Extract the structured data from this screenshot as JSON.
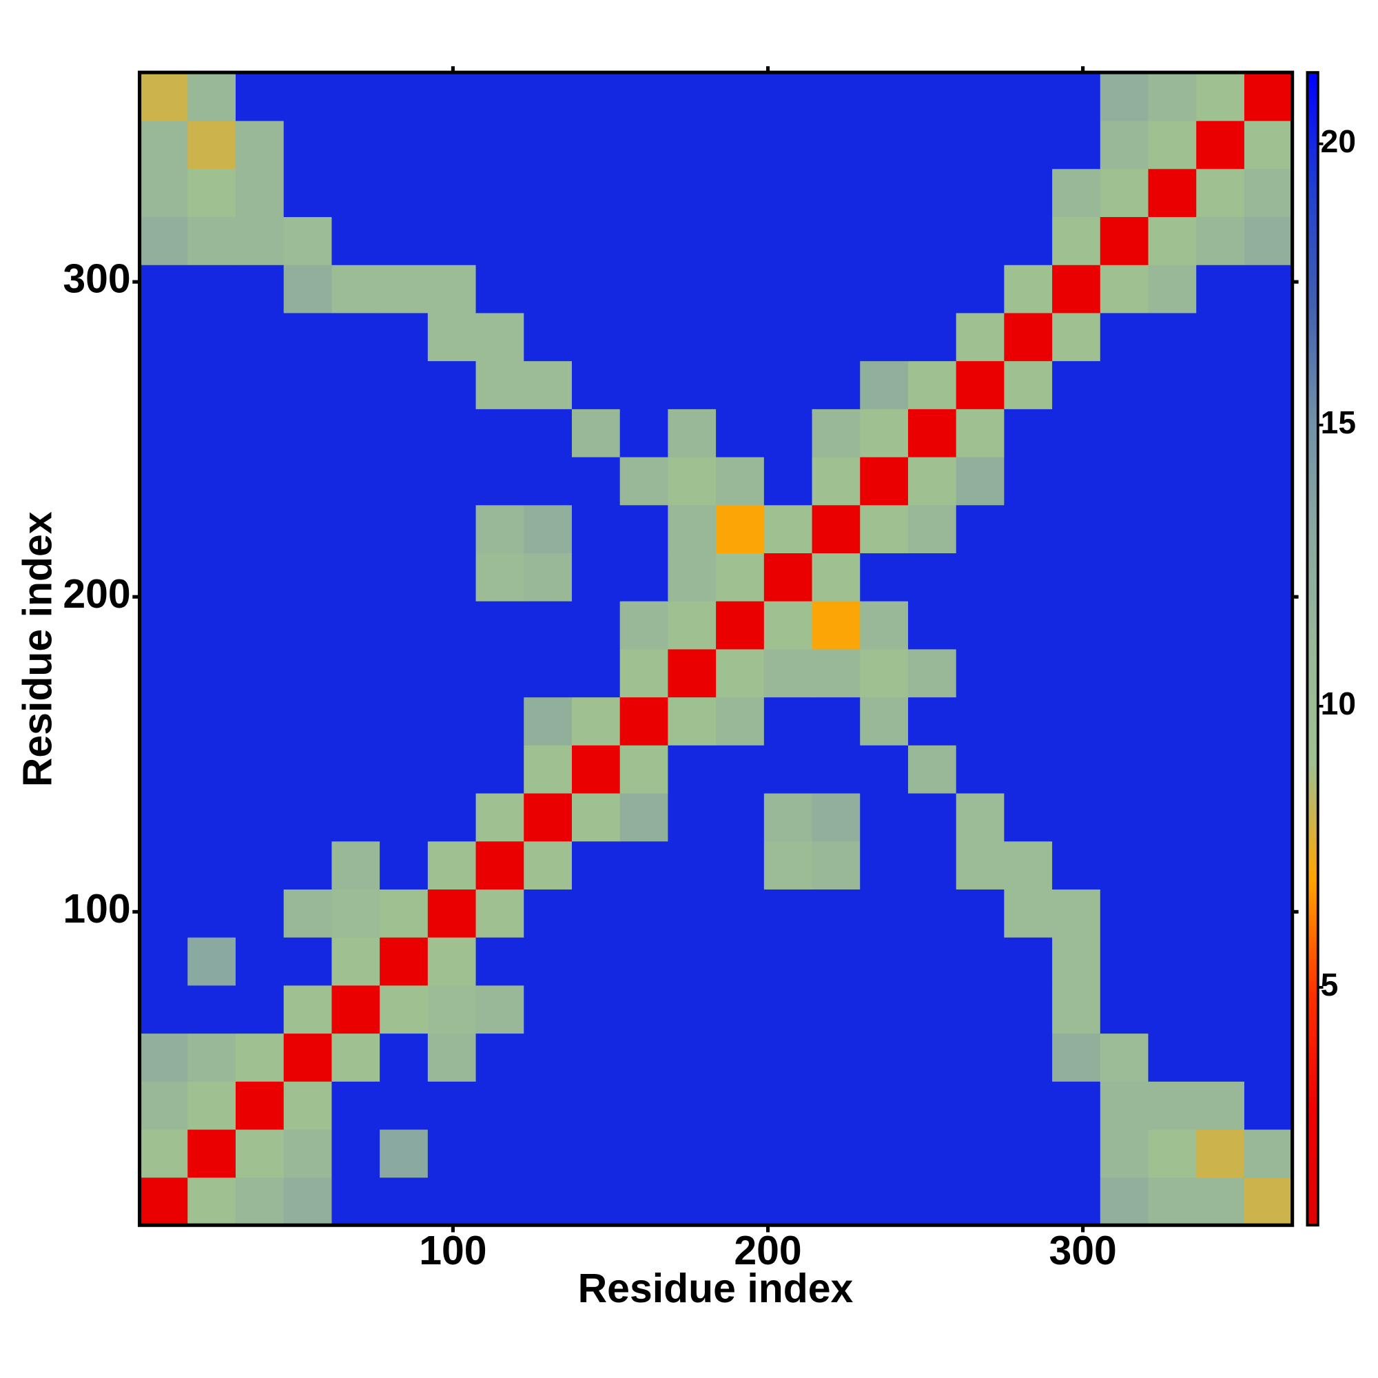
{
  "chart_data": {
    "type": "heatmap",
    "xlabel": "Residue index",
    "ylabel": "Residue index",
    "xlim": [
      0.5,
      366.5
    ],
    "ylim": [
      0.5,
      366.5
    ],
    "xticks": [
      100,
      200,
      300
    ],
    "yticks": [
      100,
      200,
      300
    ],
    "zlim": [
      0.77,
      21.27
    ],
    "zticks": [
      5,
      10,
      15,
      20
    ],
    "colorscale": [
      "#e00000",
      "#f00000",
      "#ff3000",
      "#ffa500",
      "#9fc090",
      "#98b898",
      "#8aa8a0",
      "#7090a8",
      "#4060b0",
      "#2040d0",
      "#0000ff"
    ],
    "values": [
      [
        2,
        9,
        11,
        12,
        20,
        20,
        20,
        20,
        20,
        20,
        20,
        20,
        20,
        20,
        20,
        20,
        20,
        20,
        20,
        20,
        12,
        11,
        11,
        8
      ],
      [
        9,
        2,
        9,
        11,
        20,
        13,
        20,
        20,
        20,
        20,
        20,
        20,
        20,
        20,
        20,
        20,
        20,
        20,
        20,
        20,
        11,
        9,
        8,
        11
      ],
      [
        11,
        9,
        2,
        9,
        20,
        20,
        20,
        20,
        20,
        20,
        20,
        20,
        20,
        20,
        20,
        20,
        20,
        20,
        20,
        20,
        11,
        11,
        11,
        20
      ],
      [
        12,
        11,
        9,
        2,
        9,
        20,
        11,
        20,
        20,
        20,
        20,
        20,
        20,
        20,
        20,
        20,
        20,
        20,
        20,
        12,
        10,
        20,
        20,
        20
      ],
      [
        20,
        20,
        20,
        9,
        2,
        9,
        10,
        11,
        20,
        20,
        20,
        20,
        20,
        20,
        20,
        20,
        20,
        20,
        20,
        10,
        20,
        20,
        20,
        20
      ],
      [
        20,
        13,
        20,
        20,
        9,
        2,
        9,
        20,
        20,
        20,
        20,
        20,
        20,
        20,
        20,
        20,
        20,
        20,
        20,
        10,
        20,
        20,
        20,
        20
      ],
      [
        20,
        20,
        20,
        11,
        10,
        9,
        2,
        9,
        20,
        20,
        20,
        20,
        20,
        20,
        20,
        20,
        20,
        20,
        10,
        10,
        20,
        20,
        20,
        20
      ],
      [
        20,
        20,
        20,
        20,
        11,
        20,
        9,
        2,
        9,
        20,
        20,
        20,
        20,
        10,
        11,
        20,
        20,
        10,
        10,
        20,
        20,
        20,
        20,
        20
      ],
      [
        20,
        20,
        20,
        20,
        20,
        20,
        20,
        9,
        2,
        9,
        12,
        20,
        20,
        11,
        12,
        20,
        20,
        10,
        20,
        20,
        20,
        20,
        20,
        20
      ],
      [
        20,
        20,
        20,
        20,
        20,
        20,
        20,
        20,
        9,
        2,
        9,
        20,
        20,
        20,
        20,
        20,
        11,
        20,
        20,
        20,
        20,
        20,
        20,
        20
      ],
      [
        20,
        20,
        20,
        20,
        20,
        20,
        20,
        20,
        12,
        9,
        2,
        9,
        11,
        20,
        20,
        11,
        20,
        20,
        20,
        20,
        20,
        20,
        20,
        20
      ],
      [
        20,
        20,
        20,
        20,
        20,
        20,
        20,
        20,
        20,
        20,
        9,
        2,
        9,
        11,
        11,
        9,
        11,
        20,
        20,
        20,
        20,
        20,
        20,
        20
      ],
      [
        20,
        20,
        20,
        20,
        20,
        20,
        20,
        20,
        20,
        20,
        11,
        9,
        2,
        9,
        7,
        11,
        20,
        20,
        20,
        20,
        20,
        20,
        20,
        20
      ],
      [
        20,
        20,
        20,
        20,
        20,
        20,
        20,
        10,
        11,
        20,
        20,
        11,
        9,
        2,
        9,
        20,
        20,
        20,
        20,
        20,
        20,
        20,
        20,
        20
      ],
      [
        20,
        20,
        20,
        20,
        20,
        20,
        20,
        11,
        12,
        20,
        20,
        11,
        7,
        9,
        2,
        9,
        11,
        20,
        20,
        20,
        20,
        20,
        20,
        20
      ],
      [
        20,
        20,
        20,
        20,
        20,
        20,
        20,
        20,
        20,
        20,
        11,
        9,
        11,
        20,
        9,
        2,
        9,
        12,
        20,
        20,
        20,
        20,
        20,
        20
      ],
      [
        20,
        20,
        20,
        20,
        20,
        20,
        20,
        20,
        20,
        11,
        20,
        11,
        20,
        20,
        11,
        9,
        2,
        9,
        20,
        20,
        20,
        20,
        20,
        20
      ],
      [
        20,
        20,
        20,
        20,
        20,
        20,
        20,
        10,
        10,
        20,
        20,
        20,
        20,
        20,
        20,
        12,
        9,
        2,
        9,
        20,
        20,
        20,
        20,
        20
      ],
      [
        20,
        20,
        20,
        20,
        20,
        20,
        10,
        10,
        20,
        20,
        20,
        20,
        20,
        20,
        20,
        20,
        20,
        9,
        2,
        9,
        20,
        20,
        20,
        20
      ],
      [
        20,
        20,
        20,
        12,
        10,
        10,
        10,
        20,
        20,
        20,
        20,
        20,
        20,
        20,
        20,
        20,
        20,
        20,
        9,
        2,
        9,
        11,
        20,
        20
      ],
      [
        12,
        11,
        11,
        10,
        20,
        20,
        20,
        20,
        20,
        20,
        20,
        20,
        20,
        20,
        20,
        20,
        20,
        20,
        20,
        9,
        2,
        9,
        11,
        12
      ],
      [
        11,
        9,
        11,
        20,
        20,
        20,
        20,
        20,
        20,
        20,
        20,
        20,
        20,
        20,
        20,
        20,
        20,
        20,
        20,
        11,
        9,
        2,
        9,
        11
      ],
      [
        11,
        8,
        11,
        20,
        20,
        20,
        20,
        20,
        20,
        20,
        20,
        20,
        20,
        20,
        20,
        20,
        20,
        20,
        20,
        20,
        11,
        9,
        2,
        9
      ],
      [
        8,
        11,
        20,
        20,
        20,
        20,
        20,
        20,
        20,
        20,
        20,
        20,
        20,
        20,
        20,
        20,
        20,
        20,
        20,
        20,
        12,
        11,
        9,
        2
      ]
    ]
  }
}
